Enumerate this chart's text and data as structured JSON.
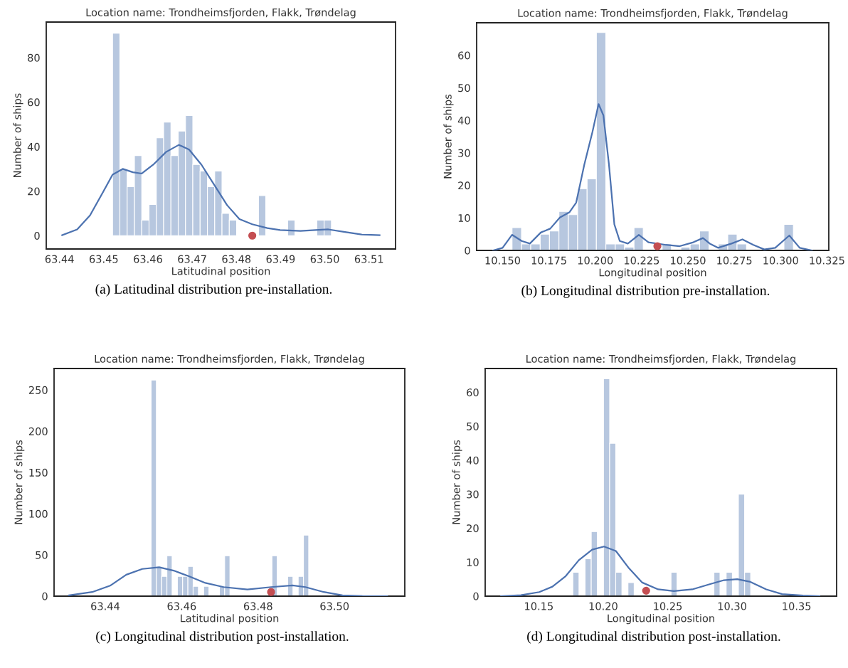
{
  "chart_data": [
    {
      "type": "histogram",
      "title": "Location name: Trondheimsfjorden, Flakk, Trøndelag",
      "xlabel": "Latitudinal position",
      "ylabel": "Number of ships",
      "color": "#b7c7df",
      "grid": false,
      "bins": [
        63.452,
        63.45365,
        63.4553,
        63.45695,
        63.4586,
        63.46025,
        63.4619,
        63.46355,
        63.4652,
        63.46685,
        63.4685,
        63.47015,
        63.4718,
        63.47345,
        63.4751,
        63.47675,
        63.4784,
        63.48005,
        63.4817,
        63.48335,
        63.485,
        63.48665,
        63.4883,
        63.48995,
        63.4916,
        63.49325,
        63.4949,
        63.49655,
        63.4982,
        63.49985,
        63.5015
      ],
      "values": [
        91,
        30,
        22,
        36,
        7,
        14,
        44,
        51,
        36,
        47,
        54,
        32,
        29,
        22,
        29,
        10,
        7,
        0,
        0,
        0,
        18,
        0,
        0,
        0,
        7,
        0,
        0,
        0,
        7,
        7
      ],
      "series": [
        {
          "type": "line",
          "color": "#4c72b0",
          "x": [
            63.4406,
            63.444,
            63.4469,
            63.4498,
            63.452,
            63.4543,
            63.4566,
            63.4586,
            63.4612,
            63.4641,
            63.467,
            63.4693,
            63.4721,
            63.475,
            63.4779,
            63.4807,
            63.4836,
            63.487,
            63.4899,
            63.4945,
            63.4979,
            63.5008,
            63.5043,
            63.5083,
            63.5124
          ],
          "values": [
            0.2,
            2.8,
            9.1,
            19.4,
            27.4,
            30.0,
            28.5,
            27.9,
            31.9,
            37.6,
            40.8,
            38.7,
            31.9,
            22.8,
            13.7,
            7.4,
            5.1,
            3.4,
            2.5,
            2.1,
            2.5,
            2.8,
            1.7,
            0.5,
            0.2
          ]
        },
        {
          "type": "scatter",
          "color": "#c44e52",
          "marker": "circle",
          "x": [
            63.4836
          ],
          "values": [
            0
          ]
        }
      ],
      "xlim": [
        63.437,
        63.516
      ],
      "ylim": [
        -6,
        96
      ],
      "xticks": [
        63.44,
        63.45,
        63.46,
        63.47,
        63.48,
        63.49,
        {
          "value": 63.5,
          "label": "63.50"
        },
        63.51
      ],
      "yticks": [
        0,
        20,
        40,
        60,
        80
      ],
      "annotations": [
        "(a) Latitudinal distribution pre-installation."
      ]
    },
    {
      "type": "histogram",
      "title": "Location name: Trondheimsfjorden, Flakk, Trøndelag",
      "xlabel": "Longitudinal position",
      "ylabel": "Number of ships",
      "color": "#b7c7df",
      "grid": false,
      "bins": [
        10.1551,
        10.1602,
        10.1652,
        10.1703,
        10.1753,
        10.1804,
        10.1855,
        10.1905,
        10.1956,
        10.2006,
        10.2057,
        10.2108,
        10.2158,
        10.2209,
        10.2259,
        10.231,
        10.2361,
        10.2411,
        10.2462,
        10.2512,
        10.2563,
        10.2614,
        10.2664,
        10.2715,
        10.2765,
        10.2816,
        10.2867,
        10.2917,
        10.2968,
        10.3018,
        10.3069
      ],
      "values": [
        7,
        2,
        2,
        5,
        6,
        12,
        11,
        19,
        22,
        67,
        2,
        2,
        1,
        7,
        0,
        0,
        2,
        0,
        1,
        2,
        6,
        0,
        2,
        5,
        2,
        0,
        0,
        0,
        0,
        8
      ],
      "series": [
        {
          "type": "line",
          "color": "#4c72b0",
          "x": [
            10.1449,
            10.15,
            10.1551,
            10.1603,
            10.1647,
            10.1706,
            10.1757,
            10.1809,
            10.186,
            10.1897,
            10.1941,
            10.1985,
            10.2018,
            10.2044,
            10.2074,
            10.2103,
            10.2132,
            10.2176,
            10.2235,
            10.2287,
            10.2382,
            10.2456,
            10.2529,
            10.2581,
            10.2618,
            10.2662,
            10.2735,
            10.2794,
            10.2853,
            10.2912,
            10.2971,
            10.3047,
            10.3103,
            10.3169
          ],
          "values": [
            0,
            0.8,
            4.8,
            2.9,
            2.1,
            5.5,
            6.7,
            10.1,
            11.7,
            14.7,
            26.4,
            36.5,
            45.0,
            41.5,
            26.4,
            8,
            2.9,
            2.1,
            4.8,
            2.5,
            1.7,
            1.3,
            2.5,
            3.8,
            2.1,
            0.8,
            2.1,
            3.4,
            1.7,
            0.3,
            0.8,
            4.6,
            0.8,
            0
          ]
        },
        {
          "type": "scatter",
          "color": "#c44e52",
          "marker": "circle",
          "x": [
            10.2335
          ],
          "values": [
            1.3
          ]
        }
      ],
      "xlim": [
        10.136,
        10.326
      ],
      "ylim": [
        0,
        70
      ],
      "xticks": [
        {
          "value": 10.15,
          "label": "10.150"
        },
        {
          "value": 10.175,
          "label": "10.175"
        },
        {
          "value": 10.2,
          "label": "10.200"
        },
        {
          "value": 10.225,
          "label": "10.225"
        },
        {
          "value": 10.25,
          "label": "10.250"
        },
        {
          "value": 10.275,
          "label": "10.275"
        },
        {
          "value": 10.3,
          "label": "10.300"
        },
        {
          "value": 10.325,
          "label": "10.325"
        }
      ],
      "yticks": [
        0,
        10,
        20,
        30,
        40,
        50,
        60
      ],
      "annotations": [
        "(b) Longitudinal distribution pre-installation."
      ]
    },
    {
      "type": "histogram",
      "title": "Location name: Trondheimsfjorden, Flakk, Trøndelag",
      "xlabel": "Latitudinal position",
      "ylabel": "Number of ships",
      "color": "#b7c7df",
      "grid": false,
      "bins": [
        63.452,
        63.45338,
        63.45475,
        63.45613,
        63.4575,
        63.45888,
        63.46025,
        63.46163,
        63.463,
        63.46438,
        63.46575,
        63.46713,
        63.4685,
        63.46988,
        63.47125,
        63.47263,
        63.474,
        63.47538,
        63.47675,
        63.47813,
        63.4795,
        63.48088,
        63.48225,
        63.48363,
        63.485,
        63.48638,
        63.48775,
        63.48913,
        63.4905,
        63.49188,
        63.49325
      ],
      "values": [
        262,
        36,
        24,
        49,
        0,
        24,
        24,
        36,
        12,
        0,
        12,
        0,
        0,
        12,
        49,
        0,
        0,
        0,
        0,
        0,
        0,
        0,
        0,
        49,
        0,
        0,
        24,
        0,
        24,
        74
      ],
      "series": [
        {
          "type": "line",
          "color": "#4c72b0",
          "x": [
            63.4305,
            63.4366,
            63.4414,
            63.4455,
            63.4497,
            63.4541,
            63.4579,
            63.462,
            63.4662,
            63.471,
            63.4772,
            63.4834,
            63.489,
            63.4924,
            63.4972,
            63.5021,
            63.5076,
            63.5138
          ],
          "values": [
            1,
            5,
            13,
            26,
            33,
            35,
            31,
            24,
            16,
            11,
            8,
            11,
            13,
            11,
            5,
            1,
            0,
            0
          ]
        },
        {
          "type": "scatter",
          "color": "#c44e52",
          "marker": "circle",
          "x": [
            63.4834
          ],
          "values": [
            5
          ]
        }
      ],
      "xlim": [
        63.4266,
        63.5184
      ],
      "ylim": [
        0,
        276
      ],
      "xticks": [
        63.44,
        63.46,
        63.48,
        {
          "value": 63.5,
          "label": "63.50"
        }
      ],
      "yticks": [
        0,
        50,
        100,
        150,
        200,
        250
      ],
      "annotations": [
        "(c) Longitudinal distribution post-installation."
      ]
    },
    {
      "type": "histogram",
      "title": "Location name: Trondheimsfjorden, Flakk, Trøndelag",
      "xlabel": "Longitudinal position",
      "ylabel": "Number of ships",
      "color": "#b7c7df",
      "grid": false,
      "bins": [
        10.1764,
        10.1812,
        10.1859,
        10.1907,
        10.1954,
        10.2002,
        10.205,
        10.2097,
        10.2145,
        10.2192,
        10.224,
        10.2288,
        10.2335,
        10.2383,
        10.243,
        10.2478,
        10.2526,
        10.2573,
        10.2621,
        10.2668,
        10.2716,
        10.2764,
        10.2811,
        10.2859,
        10.2906,
        10.2954,
        10.3002,
        10.3049,
        10.3097,
        10.3144
      ],
      "values": [
        7,
        0,
        11,
        19,
        0,
        64,
        45,
        7,
        0,
        4,
        0,
        0,
        0,
        0,
        0,
        0,
        7,
        0,
        0,
        0,
        0,
        0,
        0,
        7,
        0,
        7,
        0,
        30,
        7
      ],
      "series": [
        {
          "type": "line",
          "color": "#4c72b0",
          "x": [
            10.1207,
            10.1361,
            10.1504,
            10.1606,
            10.1709,
            10.1811,
            10.1914,
            10.2006,
            10.2098,
            10.22,
            10.2303,
            10.2426,
            10.2548,
            10.2691,
            10.2835,
            10.2937,
            10.304,
            10.3142,
            10.3265,
            10.3388,
            10.3551,
            10.3678
          ],
          "values": [
            0,
            0.3,
            1.2,
            2.8,
            5.9,
            10.6,
            13.7,
            14.6,
            13.3,
            8.2,
            4.0,
            2.0,
            1.5,
            2.0,
            3.6,
            4.7,
            5.0,
            4.2,
            2.0,
            0.6,
            0.2,
            0
          ]
        },
        {
          "type": "scatter",
          "color": "#c44e52",
          "marker": "circle",
          "x": [
            10.2333
          ],
          "values": [
            1.6
          ]
        }
      ],
      "xlim": [
        10.1084,
        10.3811
      ],
      "ylim": [
        0,
        67
      ],
      "xticks": [
        10.15,
        {
          "value": 10.2,
          "label": "10.20"
        },
        10.25,
        {
          "value": 10.3,
          "label": "10.30"
        },
        10.35
      ],
      "yticks": [
        0,
        10,
        20,
        30,
        40,
        50,
        60
      ],
      "annotations": [
        "(d) Longitudinal distribution post-installation."
      ]
    }
  ]
}
